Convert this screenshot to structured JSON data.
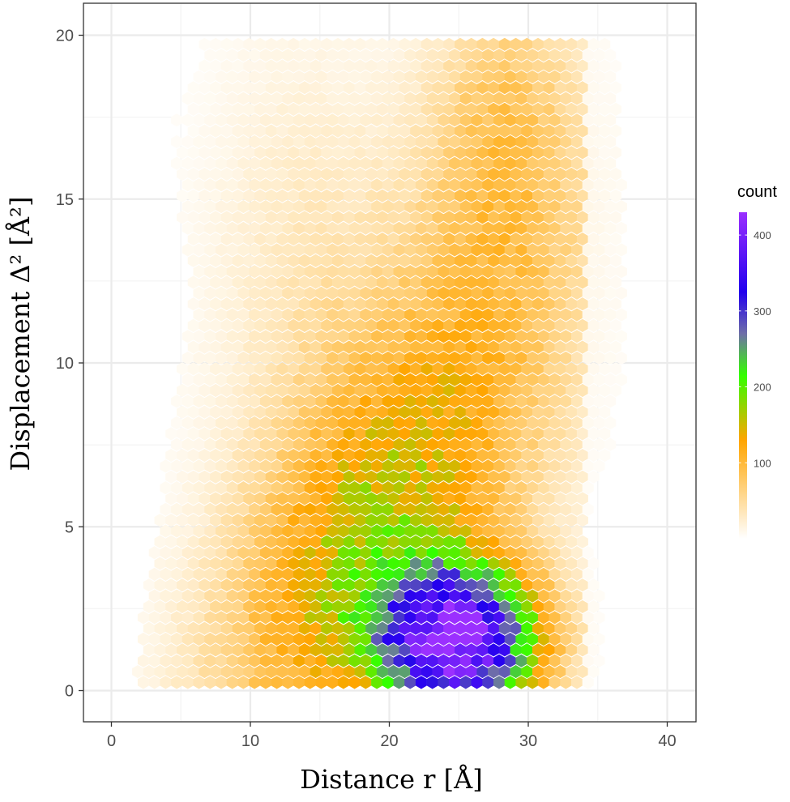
{
  "chart_data": {
    "type": "heatmap",
    "subtype": "hexbin",
    "title": "",
    "xlabel": "Distance r [Å]",
    "ylabel": "Displacement Δ² [Å²]",
    "xlim": [
      -2,
      42
    ],
    "ylim": [
      -1,
      20.25
    ],
    "x_ticks": [
      0,
      10,
      20,
      30,
      40
    ],
    "x_tick_labels": [
      "0",
      "10",
      "20",
      "30",
      "40"
    ],
    "y_ticks": [
      0,
      5,
      10,
      15,
      20
    ],
    "y_tick_labels": [
      "0",
      "5",
      "10",
      "15",
      "20"
    ],
    "grid": true,
    "legend": {
      "title": "count",
      "position": "right",
      "range": [
        0,
        430
      ],
      "ticks": [
        100,
        200,
        300,
        400
      ],
      "tick_labels": [
        "100",
        "200",
        "300",
        "400"
      ],
      "gradient": [
        {
          "value": 0,
          "color": "#ffffff"
        },
        {
          "value": 130,
          "color": "#ffa500"
        },
        {
          "value": 215,
          "color": "#33ff00"
        },
        {
          "value": 270,
          "color": "#6f6fa8"
        },
        {
          "value": 325,
          "color": "#2200ee"
        },
        {
          "value": 430,
          "color": "#9b30ff"
        }
      ]
    },
    "bins": {
      "x_range": [
        1.5,
        40
      ],
      "y_range": [
        0.25,
        20
      ],
      "density_peak": {
        "x": 24.5,
        "y": 1.6,
        "count": 420
      }
    }
  }
}
